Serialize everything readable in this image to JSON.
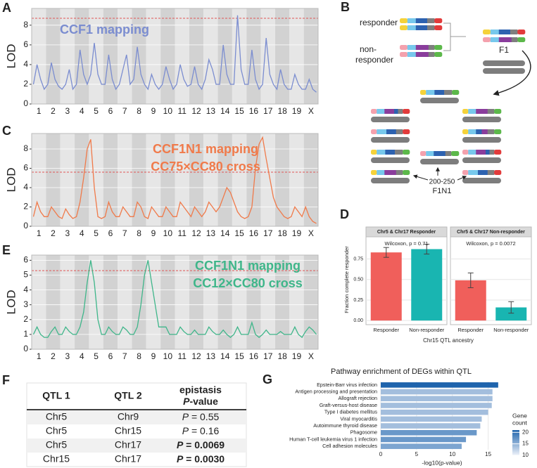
{
  "chart_data": [
    {
      "type": "lod",
      "panel_label": "A",
      "title": [
        "CCF1 mapping"
      ],
      "ylabel": "LOD",
      "categories": [
        "1",
        "2",
        "3",
        "4",
        "5",
        "6",
        "7",
        "8",
        "9",
        "10",
        "11",
        "12",
        "13",
        "14",
        "15",
        "16",
        "17",
        "18",
        "19",
        "X"
      ],
      "x": [
        0.125,
        0.375,
        0.625,
        0.875,
        1.125,
        1.375,
        1.625,
        1.875,
        2.125,
        2.375,
        2.625,
        2.875,
        3.125,
        3.375,
        3.625,
        3.875,
        4.125,
        4.375,
        4.625,
        4.875,
        5.125,
        5.375,
        5.625,
        5.875,
        6.125,
        6.375,
        6.625,
        6.875,
        7.125,
        7.375,
        7.625,
        7.875,
        8.125,
        8.375,
        8.625,
        8.875,
        9.125,
        9.375,
        9.625,
        9.875,
        10.125,
        10.375,
        10.625,
        10.875,
        11.125,
        11.375,
        11.625,
        11.875,
        12.125,
        12.375,
        12.625,
        12.875,
        13.125,
        13.375,
        13.625,
        13.875,
        14.125,
        14.375,
        14.625,
        14.875,
        15.125,
        15.375,
        15.625,
        15.875,
        16.125,
        16.375,
        16.625,
        16.875,
        17.125,
        17.375,
        17.625,
        17.875,
        18.125,
        18.375,
        18.625,
        18.875,
        19.125,
        19.375,
        19.625,
        19.875
      ],
      "series": [
        {
          "color": "#7b8dd0",
          "values": [
            2,
            4,
            2.5,
            1.5,
            2,
            4.2,
            2.5,
            1.8,
            1.5,
            2,
            3.5,
            1.5,
            2,
            5.5,
            3,
            2,
            3,
            6.2,
            3,
            2,
            2,
            5,
            2.5,
            1.5,
            2,
            3.5,
            5,
            2,
            2.5,
            5.8,
            3,
            2,
            1.5,
            3,
            2,
            1.5,
            2,
            3.8,
            2.5,
            1.5,
            2,
            4,
            2.5,
            1.8,
            2,
            3.8,
            2,
            1.5,
            2.5,
            4.5,
            3.5,
            2,
            2,
            6,
            3,
            2,
            2,
            9,
            3.5,
            2,
            2,
            5.5,
            2.5,
            1.5,
            2,
            6.7,
            3,
            2,
            1.5,
            3.5,
            2,
            1.5,
            1.5,
            3,
            2,
            1.5,
            1.5,
            2.5,
            1.5,
            1.2
          ]
        }
      ],
      "threshold": 8.7,
      "threshold_color": "#e05555",
      "xlim": [
        0,
        20
      ],
      "ylim": [
        0,
        9.7
      ],
      "yticks": [
        0,
        2,
        4,
        6,
        8
      ]
    },
    {
      "type": "lod",
      "panel_label": "C",
      "title": [
        "CCF1N1 mapping",
        "CC75×CC80 cross"
      ],
      "ylabel": "LOD",
      "categories": [
        "1",
        "2",
        "3",
        "4",
        "5",
        "6",
        "7",
        "8",
        "9",
        "10",
        "11",
        "12",
        "13",
        "14",
        "15",
        "16",
        "17",
        "18",
        "19",
        "X"
      ],
      "x": [
        0.125,
        0.375,
        0.625,
        0.875,
        1.125,
        1.375,
        1.625,
        1.875,
        2.125,
        2.375,
        2.625,
        2.875,
        3.125,
        3.375,
        3.625,
        3.875,
        4.125,
        4.375,
        4.625,
        4.875,
        5.125,
        5.375,
        5.625,
        5.875,
        6.125,
        6.375,
        6.625,
        6.875,
        7.125,
        7.375,
        7.625,
        7.875,
        8.125,
        8.375,
        8.625,
        8.875,
        9.125,
        9.375,
        9.625,
        9.875,
        10.125,
        10.375,
        10.625,
        10.875,
        11.125,
        11.375,
        11.625,
        11.875,
        12.125,
        12.375,
        12.625,
        12.875,
        13.125,
        13.375,
        13.625,
        13.875,
        14.125,
        14.375,
        14.625,
        14.875,
        15.125,
        15.375,
        15.625,
        15.875,
        16.125,
        16.375,
        16.625,
        16.875,
        17.125,
        17.375,
        17.625,
        17.875,
        18.125,
        18.375,
        18.625,
        18.875,
        19.125,
        19.375,
        19.625,
        19.875
      ],
      "series": [
        {
          "color": "#f07a4a",
          "values": [
            1,
            2.5,
            1.5,
            1,
            1,
            2,
            1.5,
            1,
            0.8,
            1.8,
            1.2,
            0.8,
            1,
            2.5,
            5,
            8,
            9,
            4,
            1,
            0.8,
            1,
            2.5,
            1.5,
            1,
            1,
            2,
            1.5,
            1,
            1,
            2.5,
            2,
            1,
            0.8,
            2,
            1.5,
            1,
            1,
            2,
            1.5,
            1,
            1,
            2.5,
            2,
            1.5,
            1,
            2,
            1.5,
            1,
            1.5,
            2.5,
            2,
            1.5,
            2,
            3,
            4,
            3.5,
            2.5,
            1.5,
            1,
            0.8,
            1,
            2,
            6,
            8.5,
            9.2,
            7,
            5,
            3,
            2,
            1.5,
            1,
            0.8,
            1,
            2,
            1.5,
            1,
            2,
            1,
            0.5,
            0.3
          ]
        }
      ],
      "threshold": 5.6,
      "threshold_color": "#e05555",
      "xlim": [
        0,
        20
      ],
      "ylim": [
        0,
        9.6
      ],
      "yticks": [
        0,
        2,
        4,
        6,
        8
      ]
    },
    {
      "type": "lod",
      "panel_label": "E",
      "title": [
        "CCF1N1 mapping",
        "CC12×CC80 cross"
      ],
      "ylabel": "LOD",
      "categories": [
        "1",
        "2",
        "3",
        "4",
        "5",
        "6",
        "7",
        "8",
        "9",
        "10",
        "11",
        "12",
        "13",
        "14",
        "15",
        "16",
        "17",
        "18",
        "19",
        "X"
      ],
      "x": [
        0.125,
        0.375,
        0.625,
        0.875,
        1.125,
        1.375,
        1.625,
        1.875,
        2.125,
        2.375,
        2.625,
        2.875,
        3.125,
        3.375,
        3.625,
        3.875,
        4.125,
        4.375,
        4.625,
        4.875,
        5.125,
        5.375,
        5.625,
        5.875,
        6.125,
        6.375,
        6.625,
        6.875,
        7.125,
        7.375,
        7.625,
        7.875,
        8.125,
        8.375,
        8.625,
        8.875,
        9.125,
        9.375,
        9.625,
        9.875,
        10.125,
        10.375,
        10.625,
        10.875,
        11.125,
        11.375,
        11.625,
        11.875,
        12.125,
        12.375,
        12.625,
        12.875,
        13.125,
        13.375,
        13.625,
        13.875,
        14.125,
        14.375,
        14.625,
        14.875,
        15.125,
        15.375,
        15.625,
        15.875,
        16.125,
        16.375,
        16.625,
        16.875,
        17.125,
        17.375,
        17.625,
        17.875,
        18.125,
        18.375,
        18.625,
        18.875,
        19.125,
        19.375,
        19.625,
        19.875
      ],
      "series": [
        {
          "color": "#3fb68a",
          "values": [
            1,
            1.5,
            1,
            0.8,
            0.8,
            1.2,
            1.5,
            1,
            1,
            1.5,
            1.2,
            1,
            1,
            1.5,
            2.5,
            4.5,
            6,
            4.5,
            2,
            1,
            1,
            1.5,
            1.2,
            1,
            1,
            1.5,
            1.3,
            1,
            1,
            1.5,
            3,
            5,
            6,
            4.5,
            3,
            1.5,
            1.5,
            1.5,
            1,
            1,
            1,
            1.5,
            1.2,
            1,
            1,
            1.3,
            1,
            1,
            1,
            1.5,
            1.2,
            1,
            1,
            1.3,
            1,
            0.8,
            1,
            1.5,
            1,
            1,
            1,
            1.8,
            1,
            0.8,
            1,
            1.3,
            1,
            1,
            1,
            1.2,
            1,
            1,
            1,
            1.5,
            1,
            0.8,
            1.2,
            1.5,
            1.3,
            1
          ]
        }
      ],
      "threshold": 5.3,
      "threshold_color": "#e05555",
      "xlim": [
        0,
        20
      ],
      "ylim": [
        0,
        6.35
      ],
      "yticks": [
        0,
        1,
        2,
        3,
        4,
        5,
        6
      ]
    },
    {
      "type": "bar",
      "panel_label": "D",
      "categories": [
        "Responder",
        "Non-responder"
      ],
      "colors": [
        "#f05f5b",
        "#19b5b1"
      ],
      "facets": [
        {
          "title": "Chr5 & Chr17 Responder",
          "annotation": "Wilcoxon, p = 0.71",
          "values": [
            0.83,
            0.87
          ],
          "errors": [
            0.06,
            0.06
          ]
        },
        {
          "title": "Chr5 & Chr17 Non-responder",
          "annotation": "Wilcoxon, p = 0.0072",
          "values": [
            0.49,
            0.16
          ],
          "errors": [
            0.09,
            0.07
          ]
        }
      ],
      "xlabel": "Chr15 QTL ancestry",
      "ylabel": "Fraction complete responder",
      "ylim": [
        -0.05,
        1.02
      ],
      "yticks": [
        {
          "value": 0,
          "label": "0.00"
        },
        {
          "value": 0.25,
          "label": "0.25"
        },
        {
          "value": 0.5,
          "label": "0.50"
        },
        {
          "value": 0.75,
          "label": "0.75"
        }
      ]
    },
    {
      "type": "hbar",
      "panel_label": "G",
      "title": "Pathway enrichment of DEGs within QTL",
      "categories": [
        "Epstein-Barr virus infection",
        "Antigen processing and presentation",
        "Allograft rejection",
        "Graft-versus-host disease",
        "Type I diabetes mellitus",
        "Viral myocarditis",
        "Autoimmune thyroid disease",
        "Phagosome",
        "Human T-cell leukemia virus 1 infection",
        "Cell adhesion molecules"
      ],
      "values": [
        16.4,
        15.6,
        15.6,
        15.5,
        15.0,
        14.1,
        13.9,
        13.4,
        11.9,
        11.3
      ],
      "gene_count": [
        21,
        14,
        14,
        14,
        14,
        14,
        14,
        17,
        17,
        16
      ],
      "xlabel": "-log10(p-value)",
      "xlim": [
        0,
        17.2
      ],
      "xticks": [
        0,
        5,
        10,
        15
      ],
      "colorbar": {
        "title": [
          "Gene",
          "count"
        ],
        "lim": [
          10,
          21
        ],
        "ticks": [
          20,
          15,
          10
        ],
        "colors": [
          "#eef2f9",
          "#1f64ad"
        ]
      }
    }
  ],
  "diagram": {
    "panel_label": "B",
    "parent_1": "responder",
    "parent_2": [
      "non-",
      "responder"
    ],
    "f1": "F1",
    "f1n1": [
      "200-250",
      "F1N1"
    ]
  },
  "table": {
    "panel_label": "F",
    "header": [
      "QTL 1",
      "QTL 2",
      [
        "epistasis",
        "P-value"
      ]
    ],
    "rows": [
      [
        "Chr5",
        "Chr9",
        "P = 0.55"
      ],
      [
        "Chr5",
        "Chr15",
        "P = 0.16"
      ],
      [
        "Chr5",
        "Chr17",
        "P = 0.0069"
      ],
      [
        "Chr15",
        "Chr17",
        "P = 0.0030"
      ]
    ],
    "bold_rows": [
      2,
      3
    ]
  }
}
